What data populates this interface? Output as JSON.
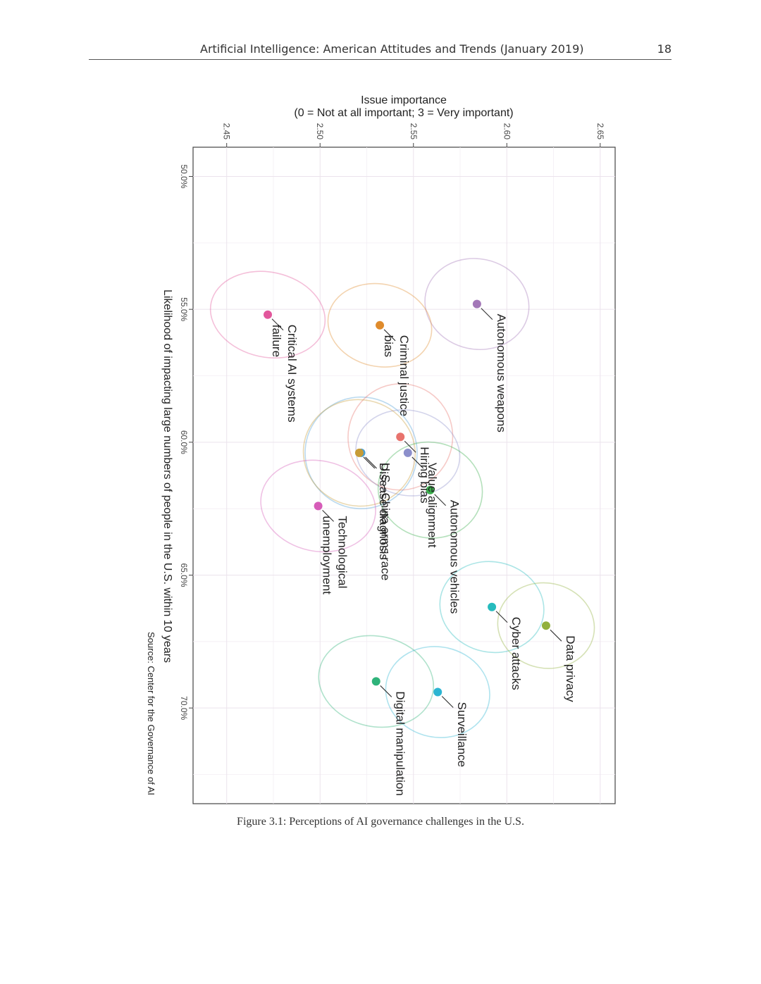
{
  "header": {
    "title": "Artificial Intelligence: American Attitudes and Trends (January 2019)",
    "page_number": "18"
  },
  "figure": {
    "caption": "Figure 3.1: Perceptions of AI governance challenges in the U.S."
  },
  "chart_data": {
    "type": "scatter",
    "orientation": "rotated 90 degrees clockwise",
    "x_axis": {
      "title_line1": "Issue importance",
      "title_line2": "(0 = Not at all important; 3 = Very important)",
      "range": [
        2.432,
        2.658
      ],
      "ticks": [
        2.45,
        2.5,
        2.55,
        2.6,
        2.65
      ],
      "tick_labels": [
        "2.45",
        "2.50",
        "2.55",
        "2.60",
        "2.65"
      ]
    },
    "y_axis": {
      "title": "Likelihood of impacting large numbers of people in the U.S. within 10 years",
      "range": [
        48.9,
        73.6
      ],
      "ticks": [
        50,
        55,
        60,
        65,
        70
      ],
      "tick_labels": [
        "50.0%",
        "55.0%",
        "60.0%",
        "65.0%",
        "70.0%"
      ]
    },
    "source": "Source: Center for the Governance of AI",
    "grid": true,
    "points": [
      {
        "name": "Autonomous weapons",
        "lines": [
          "Autonomous weapons"
        ],
        "x": 2.584,
        "y": 54.8,
        "color": "#a377b8",
        "ex": 0.028,
        "ey": 1.7
      },
      {
        "name": "Criminal justice bias",
        "lines": [
          "Criminal justice",
          "bias"
        ],
        "x": 2.532,
        "y": 55.6,
        "color": "#df8b2c",
        "ex": 0.028,
        "ey": 1.55
      },
      {
        "name": "Critical AI systems failure",
        "lines": [
          "Critical AI systems",
          "failure"
        ],
        "x": 2.472,
        "y": 55.2,
        "color": "#e2579c",
        "ex": 0.031,
        "ey": 1.6
      },
      {
        "name": "U.S.-China arms race",
        "lines": [
          "U.S.–China arms race"
        ],
        "x": 2.522,
        "y": 60.4,
        "color": "#4d9fd4",
        "ex": 0.03,
        "ey": 2.1
      },
      {
        "name": "Hiring bias",
        "lines": [
          "Hiring bias"
        ],
        "x": 2.543,
        "y": 59.8,
        "color": "#e8736d",
        "ex": 0.028,
        "ey": 2.0
      },
      {
        "name": "Value alignment",
        "lines": [
          "Value alignment"
        ],
        "x": 2.547,
        "y": 60.4,
        "color": "#8c8fcb",
        "ex": 0.028,
        "ey": 1.6
      },
      {
        "name": "Disease diagnosis",
        "lines": [
          "Disease diagnosis"
        ],
        "x": 2.521,
        "y": 60.4,
        "color": "#c79b35",
        "ex": 0.03,
        "ey": 2.0
      },
      {
        "name": "Autonomous vehicles",
        "lines": [
          "Autonomous vehicles"
        ],
        "x": 2.559,
        "y": 61.8,
        "color": "#3aae4b",
        "ex": 0.028,
        "ey": 1.8
      },
      {
        "name": "Technological unemployment",
        "lines": [
          "Technological",
          "unemployment"
        ],
        "x": 2.499,
        "y": 62.4,
        "color": "#d65cb8",
        "ex": 0.031,
        "ey": 1.7
      },
      {
        "name": "Cyber attacks",
        "lines": [
          "Cyber attacks"
        ],
        "x": 2.592,
        "y": 66.2,
        "color": "#26bbbd",
        "ex": 0.028,
        "ey": 1.7
      },
      {
        "name": "Data privacy",
        "lines": [
          "Data privacy"
        ],
        "x": 2.621,
        "y": 66.9,
        "color": "#90b03c",
        "ex": 0.026,
        "ey": 1.6
      },
      {
        "name": "Digital manipulation",
        "lines": [
          "Digital manipulation"
        ],
        "x": 2.53,
        "y": 69.0,
        "color": "#2fb37a",
        "ex": 0.031,
        "ey": 1.7
      },
      {
        "name": "Surveillance",
        "lines": [
          "Surveillance"
        ],
        "x": 2.563,
        "y": 69.4,
        "color": "#2cb5d2",
        "ex": 0.028,
        "ey": 1.7
      }
    ]
  }
}
